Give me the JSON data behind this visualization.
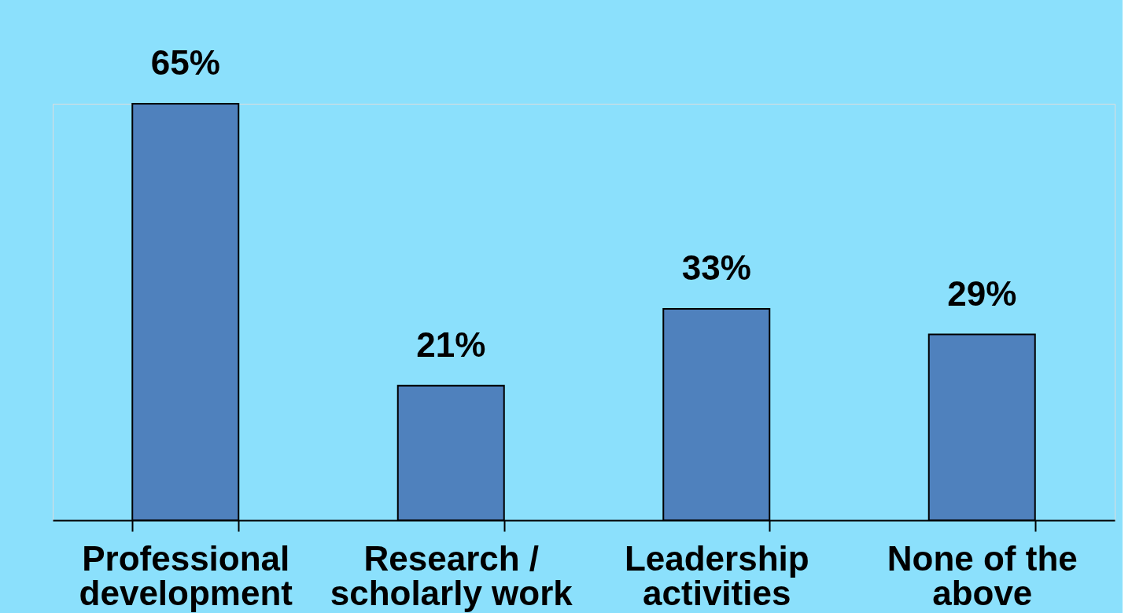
{
  "chart_data": {
    "type": "bar",
    "categories": [
      "Professional\ndevelopment",
      "Research /\nscholarly work",
      "Leadership\nactivities",
      "None of the\nabove"
    ],
    "values": [
      65,
      21,
      33,
      29
    ],
    "value_labels": [
      "65%",
      "21%",
      "33%",
      "29%"
    ],
    "color": "#4f81bd",
    "grid": false
  }
}
